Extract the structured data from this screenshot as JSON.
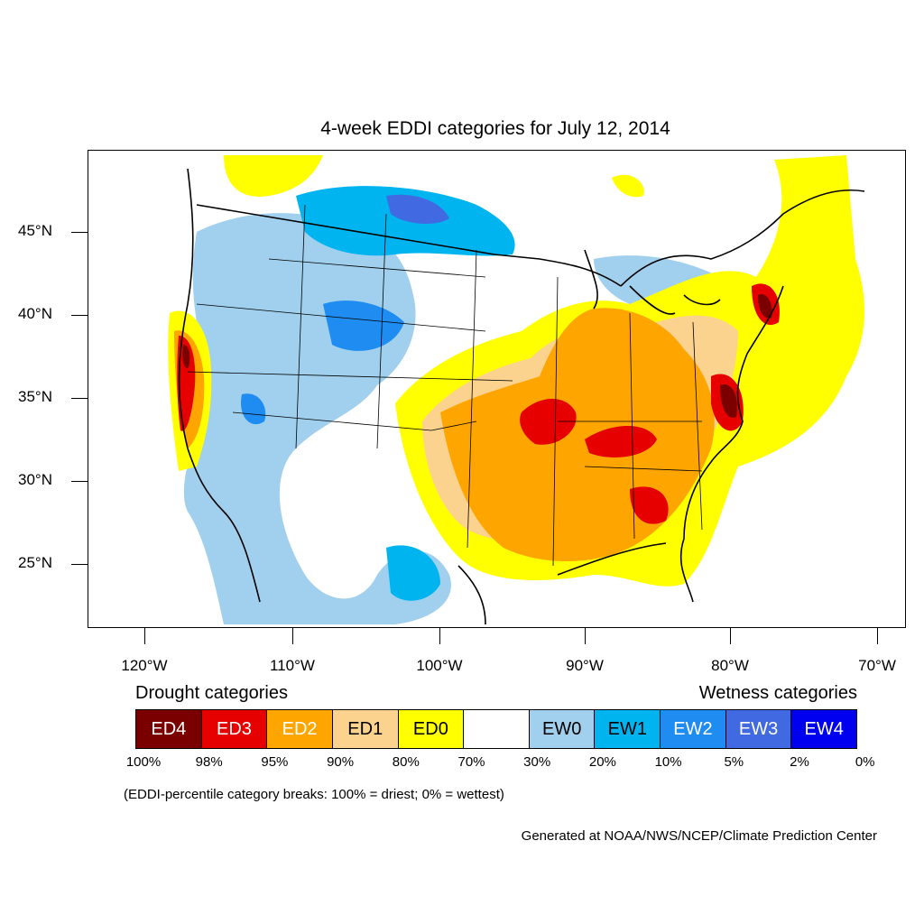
{
  "title": "4-week EDDI categories for July 12, 2014",
  "lat_labels": [
    "45°N",
    "40°N",
    "35°N",
    "30°N",
    "25°N"
  ],
  "lon_labels": [
    "120°W",
    "110°W",
    "100°W",
    "90°W",
    "80°W",
    "70°W"
  ],
  "legend": {
    "drought_heading": "Drought categories",
    "wetness_heading": "Wetness categories",
    "categories": [
      {
        "label": "ED4",
        "color": "#7a0000",
        "text_color": "#ffffff"
      },
      {
        "label": "ED3",
        "color": "#e60000",
        "text_color": "#ffffff"
      },
      {
        "label": "ED2",
        "color": "#ffa500",
        "text_color": "#ffffff"
      },
      {
        "label": "ED1",
        "color": "#fcd28f",
        "text_color": "#000000"
      },
      {
        "label": "ED0",
        "color": "#ffff00",
        "text_color": "#000000"
      },
      {
        "label": "",
        "color": "#ffffff",
        "text_color": "#000000"
      },
      {
        "label": "EW0",
        "color": "#a0d0ee",
        "text_color": "#000000"
      },
      {
        "label": "EW1",
        "color": "#00b4f0",
        "text_color": "#000000"
      },
      {
        "label": "EW2",
        "color": "#1e8cf0",
        "text_color": "#ffffff"
      },
      {
        "label": "EW3",
        "color": "#4169e1",
        "text_color": "#ffffff"
      },
      {
        "label": "EW4",
        "color": "#0000f0",
        "text_color": "#ffffff"
      }
    ],
    "percentiles": [
      "100%",
      "98%",
      "95%",
      "90%",
      "80%",
      "70%",
      "30%",
      "20%",
      "10%",
      "5%",
      "2%",
      "0%"
    ]
  },
  "note": "(EDDI-percentile category breaks: 100% = driest; 0% = wettest)",
  "credit": "Generated at NOAA/NWS/NCEP/Climate Prediction Center"
}
